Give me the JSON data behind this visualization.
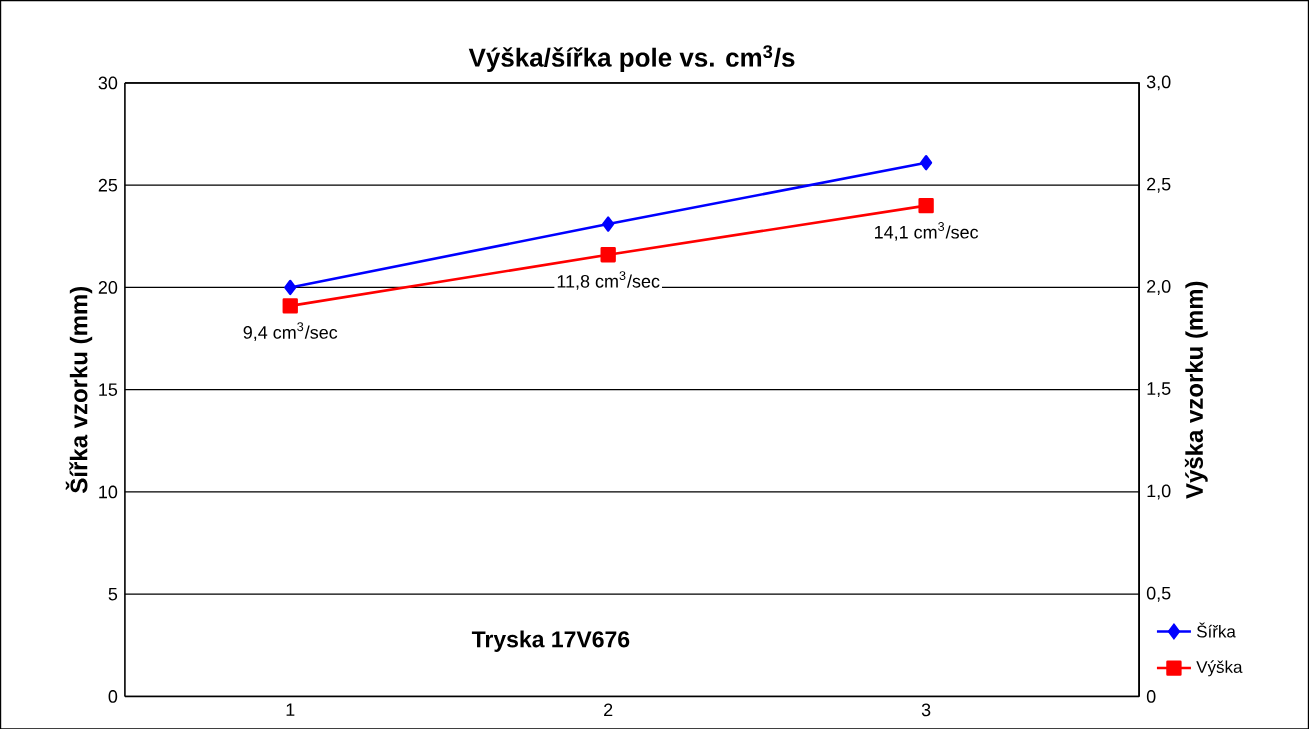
{
  "chart_data": {
    "type": "line",
    "title": "Výška/šířka pole vs. cm$^{3}$/s",
    "ylabel": "Šířka vzorku (mm)",
    "y2label": "Výška vzorku (mm)",
    "x": [
      1,
      2,
      3
    ],
    "xlim": [
      0.48,
      3.67
    ],
    "xticks": [
      1,
      2,
      3
    ],
    "ylim": [
      0,
      30
    ],
    "yticks": [
      0,
      5,
      10,
      15,
      20,
      25,
      30
    ],
    "y2lim": [
      0,
      3
    ],
    "y2ticks": [
      {
        "value": 0,
        "label": "0"
      },
      {
        "value": 0.5,
        "label": "0,5"
      },
      {
        "value": 1,
        "label": "1,0"
      },
      {
        "value": 1.5,
        "label": "1,5"
      },
      {
        "value": 2,
        "label": "2,0"
      },
      {
        "value": 2.5,
        "label": "2,5"
      },
      {
        "value": 3,
        "label": "3,0"
      }
    ],
    "grid": "y",
    "legend": "bottom right",
    "series": [
      {
        "name": "Šířka",
        "color": "#0000ff",
        "values": [
          20.0,
          23.1,
          26.1
        ],
        "marker": "diamond"
      },
      {
        "name": "Výška",
        "color": "#ff0000",
        "values": [
          1.91,
          2.16,
          2.4
        ],
        "marker": "square",
        "axis": "y2"
      }
    ],
    "annotations": [
      {
        "text": "9,4 cm$^{3}$/sec",
        "x": 1,
        "y": 19.1
      },
      {
        "text": "11,8 cm$^{3}$/sec",
        "x": 2,
        "y": 21.6
      },
      {
        "text": "14,1 cm$^{3}$/sec",
        "x": 3,
        "y": 24.0
      },
      "Tryska 17V676"
    ]
  }
}
